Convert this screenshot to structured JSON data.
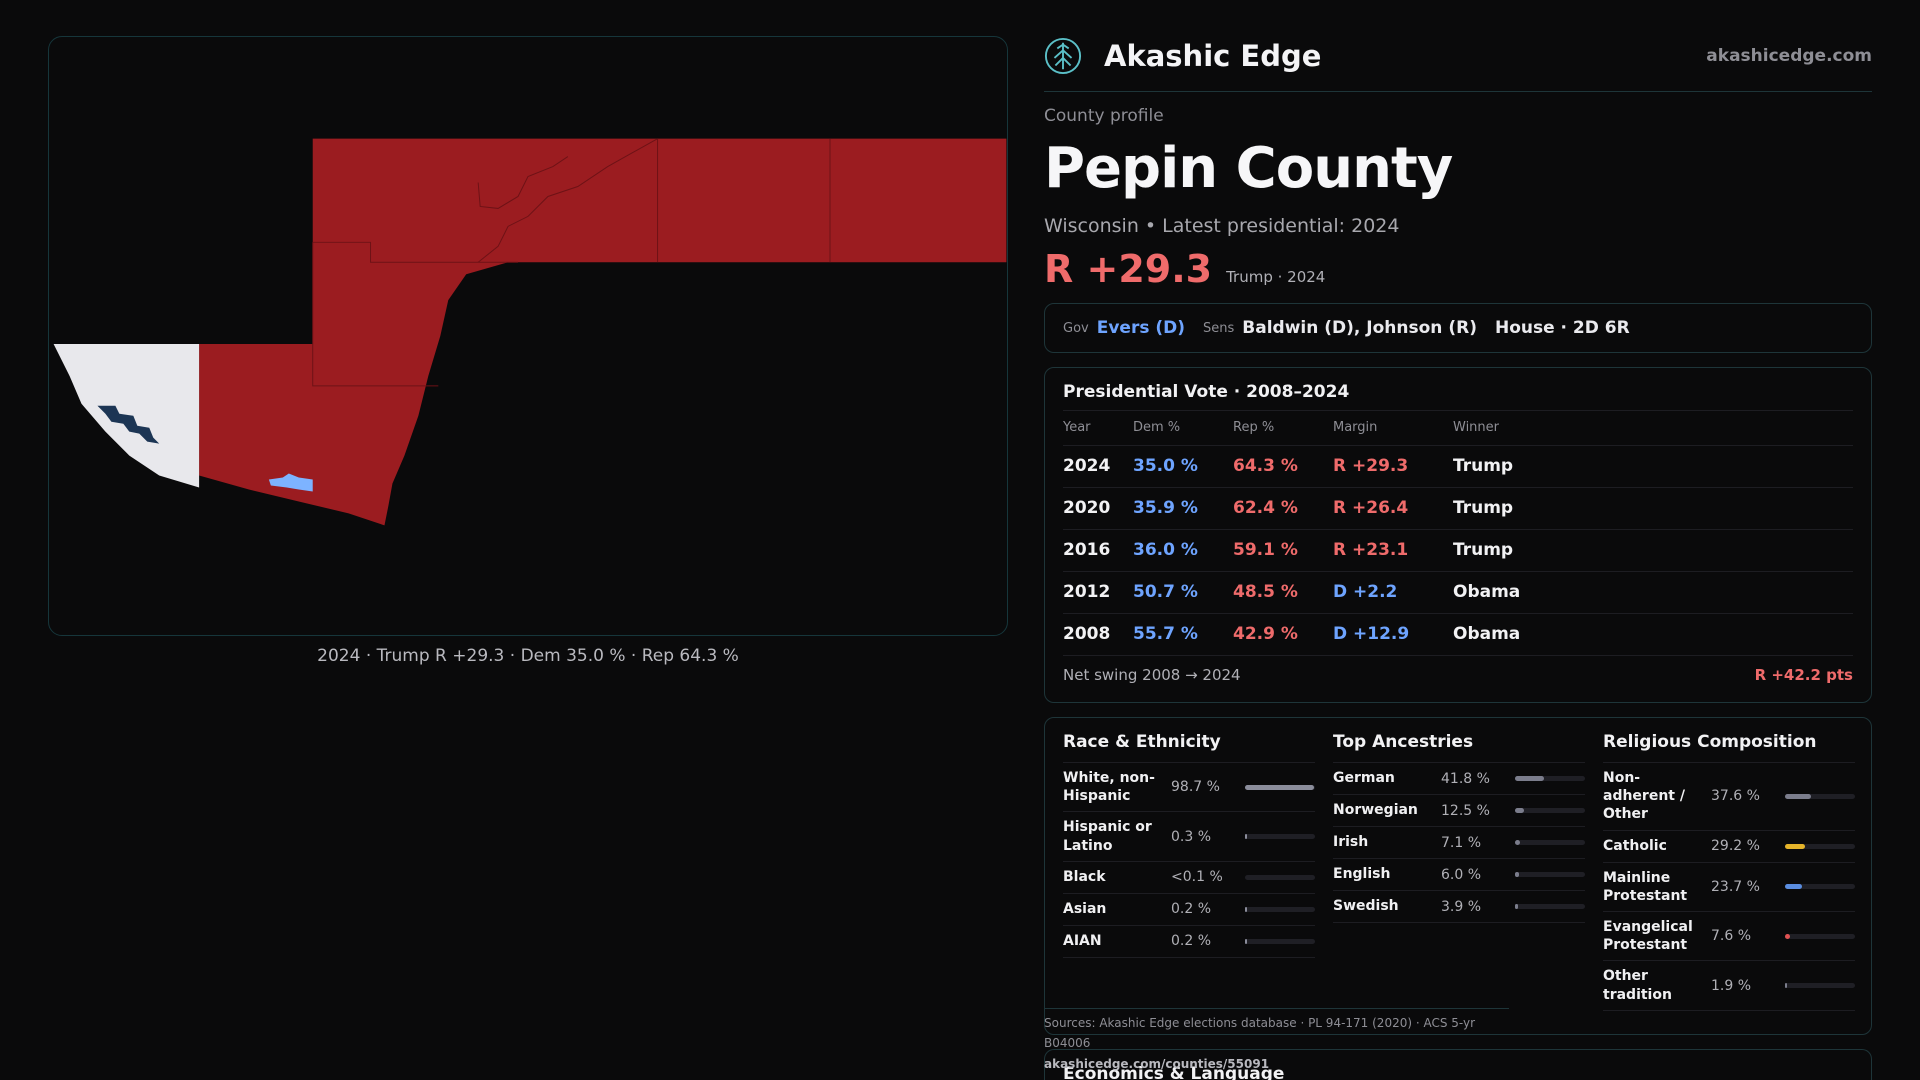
{
  "map": {
    "caption": "2024 · Trump R +29.3 · Dem 35.0 % · Rep 64.3 %",
    "colors": {
      "rep": "#9b1c20",
      "dem_light": "#e8e8ec",
      "dem_dark": "#1c3554",
      "dem_mid": "#7db3ff"
    }
  },
  "brand": {
    "name": "Akashic Edge",
    "url": "akashicedge.com",
    "logo_icon": "tree-of-life-icon"
  },
  "profile": {
    "label": "County profile",
    "name": "Pepin County",
    "subtitle": "Wisconsin • Latest presidential: 2024",
    "margin": "R +29.3",
    "margin_note": "Trump · 2024"
  },
  "officials": {
    "gov_label": "Gov",
    "gov": "Evers (D)",
    "sens_label": "Sens",
    "sens": "Baldwin (D), Johnson (R)",
    "house": "House · 2D 6R"
  },
  "presidential": {
    "title": "Presidential Vote · 2008–2024",
    "headers": [
      "Year",
      "Dem %",
      "Rep %",
      "Margin",
      "Winner"
    ],
    "rows": [
      {
        "year": "2024",
        "dem": "35.0 %",
        "rep": "64.3 %",
        "margin": "R +29.3",
        "winner": "Trump",
        "party": "R"
      },
      {
        "year": "2020",
        "dem": "35.9 %",
        "rep": "62.4 %",
        "margin": "R +26.4",
        "winner": "Trump",
        "party": "R"
      },
      {
        "year": "2016",
        "dem": "36.0 %",
        "rep": "59.1 %",
        "margin": "R +23.1",
        "winner": "Trump",
        "party": "R"
      },
      {
        "year": "2012",
        "dem": "50.7 %",
        "rep": "48.5 %",
        "margin": "D +2.2",
        "winner": "Obama",
        "party": "D"
      },
      {
        "year": "2008",
        "dem": "55.7 %",
        "rep": "42.9 %",
        "margin": "D +12.9",
        "winner": "Obama",
        "party": "D"
      }
    ],
    "swing_label": "Net swing 2008 → 2024",
    "swing_value": "R +42.2 pts"
  },
  "race": {
    "title": "Race & Ethnicity",
    "rows": [
      {
        "label": "White, non-Hispanic",
        "value": "98.7 %",
        "frac": 0.987,
        "color": "#8b8d9b"
      },
      {
        "label": "Hispanic or Latino",
        "value": "0.3 %",
        "frac": 0.003,
        "color": "#8b8d9b"
      },
      {
        "label": "Black",
        "value": "<0.1 %",
        "frac": 0.0,
        "color": "#8b8d9b"
      },
      {
        "label": "Asian",
        "value": "0.2 %",
        "frac": 0.002,
        "color": "#8b8d9b"
      },
      {
        "label": "AIAN",
        "value": "0.2 %",
        "frac": 0.002,
        "color": "#8b8d9b"
      }
    ]
  },
  "ancestry": {
    "title": "Top Ancestries",
    "rows": [
      {
        "label": "German",
        "value": "41.8 %",
        "frac": 0.418,
        "color": "#7b7d8c"
      },
      {
        "label": "Norwegian",
        "value": "12.5 %",
        "frac": 0.125,
        "color": "#7b7d8c"
      },
      {
        "label": "Irish",
        "value": "7.1 %",
        "frac": 0.071,
        "color": "#7b7d8c"
      },
      {
        "label": "English",
        "value": "6.0 %",
        "frac": 0.06,
        "color": "#7b7d8c"
      },
      {
        "label": "Swedish",
        "value": "3.9 %",
        "frac": 0.039,
        "color": "#7b7d8c"
      }
    ]
  },
  "religion": {
    "title": "Religious Composition",
    "rows": [
      {
        "label": "Non-adherent / Other",
        "value": "37.6 %",
        "frac": 0.376,
        "color": "#7b7d8c"
      },
      {
        "label": "Catholic",
        "value": "29.2 %",
        "frac": 0.292,
        "color": "#e5b42a"
      },
      {
        "label": "Mainline Protestant",
        "value": "23.7 %",
        "frac": 0.237,
        "color": "#5a8de0"
      },
      {
        "label": "Evangelical Protestant",
        "value": "7.6 %",
        "frac": 0.076,
        "color": "#e05252"
      },
      {
        "label": "Other tradition",
        "value": "1.9 %",
        "frac": 0.019,
        "color": "#7b7d8c"
      }
    ]
  },
  "sources": {
    "text": "Sources: Akashic Edge elections database · PL 94-171 (2020) · ACS 5-yr B04006",
    "url": "akashicedge.com/counties/55091"
  },
  "econ": {
    "title": "Economics & Language"
  }
}
